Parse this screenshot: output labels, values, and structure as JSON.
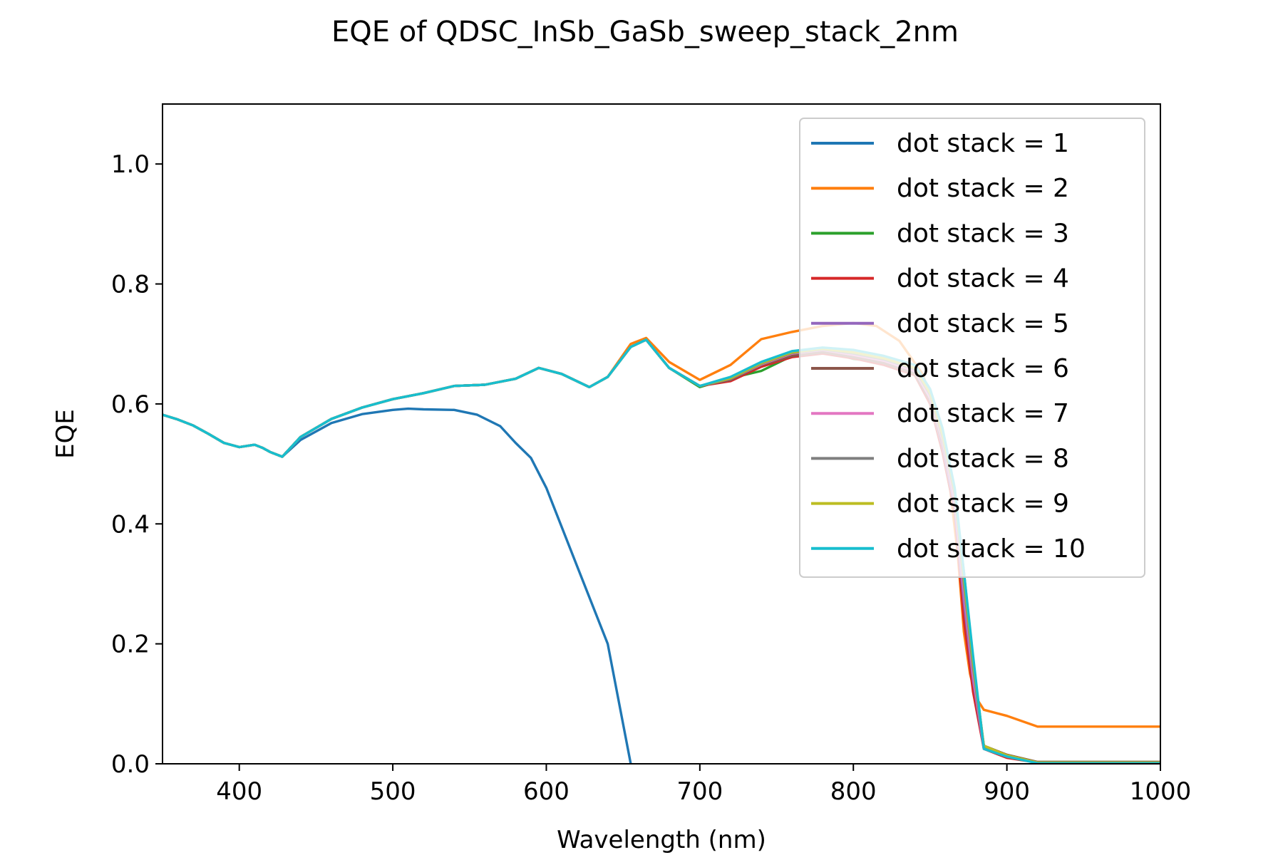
{
  "chart_data": {
    "type": "line",
    "title": "EQE of  QDSC_InSb_GaSb_sweep_stack_2nm",
    "xlabel": "Wavelength (nm)",
    "ylabel": "EQE",
    "xlim": [
      350,
      1000
    ],
    "ylim": [
      0,
      1.1
    ],
    "x_ticks": [
      400,
      500,
      600,
      700,
      800,
      900,
      1000
    ],
    "y_ticks": [
      0.0,
      0.2,
      0.4,
      0.6,
      0.8,
      1.0
    ],
    "x_tick_labels": [
      "400",
      "500",
      "600",
      "700",
      "800",
      "900",
      "1000"
    ],
    "y_tick_labels": [
      "0.0",
      "0.2",
      "0.4",
      "0.6",
      "0.8",
      "1.0"
    ],
    "grid": false,
    "legend_position": "top-right",
    "series": [
      {
        "name": "dot stack = 1",
        "color": "#1f77b4",
        "x": [
          350,
          360,
          370,
          380,
          390,
          400,
          410,
          415,
          420,
          428,
          440,
          460,
          480,
          500,
          510,
          520,
          540,
          555,
          570,
          580,
          590,
          600,
          620,
          640,
          655
        ],
        "y": [
          0.582,
          0.574,
          0.564,
          0.55,
          0.535,
          0.528,
          0.532,
          0.527,
          0.52,
          0.512,
          0.54,
          0.568,
          0.583,
          0.59,
          0.592,
          0.591,
          0.59,
          0.582,
          0.563,
          0.535,
          0.51,
          0.46,
          0.33,
          0.2,
          0.0
        ]
      },
      {
        "name": "dot stack = 2",
        "color": "#ff7f0e",
        "x": [
          350,
          360,
          370,
          380,
          390,
          400,
          410,
          415,
          420,
          428,
          440,
          460,
          480,
          500,
          520,
          540,
          560,
          580,
          595,
          610,
          628,
          640,
          655,
          665,
          680,
          700,
          720,
          740,
          760,
          780,
          800,
          815,
          830,
          845,
          855,
          862,
          868,
          872,
          876,
          880,
          885,
          900,
          920,
          1000
        ],
        "y": [
          0.582,
          0.574,
          0.564,
          0.55,
          0.535,
          0.528,
          0.532,
          0.527,
          0.52,
          0.512,
          0.545,
          0.575,
          0.594,
          0.608,
          0.618,
          0.63,
          0.632,
          0.642,
          0.66,
          0.65,
          0.628,
          0.645,
          0.7,
          0.71,
          0.67,
          0.64,
          0.665,
          0.708,
          0.72,
          0.73,
          0.735,
          0.73,
          0.705,
          0.65,
          0.58,
          0.48,
          0.35,
          0.22,
          0.15,
          0.11,
          0.09,
          0.08,
          0.062,
          0.062
        ]
      },
      {
        "name": "dot stack = 3",
        "color": "#2ca02c",
        "x": [
          350,
          360,
          370,
          380,
          390,
          400,
          410,
          415,
          420,
          428,
          440,
          460,
          480,
          500,
          520,
          540,
          560,
          580,
          595,
          610,
          628,
          640,
          655,
          665,
          680,
          700,
          720,
          740,
          760,
          780,
          800,
          820,
          840,
          850,
          858,
          866,
          872,
          878,
          885,
          900,
          920,
          1000
        ],
        "y": [
          0.582,
          0.574,
          0.564,
          0.55,
          0.535,
          0.528,
          0.532,
          0.527,
          0.52,
          0.512,
          0.545,
          0.575,
          0.594,
          0.608,
          0.618,
          0.63,
          0.632,
          0.642,
          0.66,
          0.65,
          0.628,
          0.645,
          0.695,
          0.707,
          0.66,
          0.628,
          0.643,
          0.655,
          0.68,
          0.69,
          0.675,
          0.67,
          0.655,
          0.6,
          0.52,
          0.42,
          0.3,
          0.15,
          0.03,
          0.015,
          0.003,
          0.003
        ]
      },
      {
        "name": "dot stack = 4",
        "color": "#d62728",
        "x": [
          350,
          360,
          370,
          380,
          390,
          400,
          410,
          415,
          420,
          428,
          440,
          460,
          480,
          500,
          520,
          540,
          560,
          580,
          595,
          610,
          628,
          640,
          655,
          665,
          680,
          700,
          720,
          740,
          760,
          780,
          800,
          820,
          840,
          850,
          858,
          866,
          872,
          878,
          885,
          900,
          920,
          1000
        ],
        "y": [
          0.582,
          0.574,
          0.564,
          0.55,
          0.535,
          0.528,
          0.532,
          0.527,
          0.52,
          0.512,
          0.545,
          0.575,
          0.594,
          0.608,
          0.618,
          0.63,
          0.632,
          0.642,
          0.66,
          0.65,
          0.628,
          0.645,
          0.695,
          0.707,
          0.66,
          0.63,
          0.638,
          0.662,
          0.678,
          0.684,
          0.676,
          0.665,
          0.648,
          0.6,
          0.52,
          0.42,
          0.24,
          0.12,
          0.025,
          0.01,
          0.002,
          0.002
        ]
      },
      {
        "name": "dot stack = 5",
        "color": "#9467bd",
        "x": [
          350,
          360,
          370,
          380,
          390,
          400,
          410,
          415,
          420,
          428,
          440,
          460,
          480,
          500,
          520,
          540,
          560,
          580,
          595,
          610,
          628,
          640,
          655,
          665,
          680,
          700,
          720,
          740,
          760,
          780,
          800,
          820,
          840,
          850,
          858,
          866,
          872,
          878,
          885,
          900,
          920,
          1000
        ],
        "y": [
          0.582,
          0.574,
          0.564,
          0.55,
          0.535,
          0.528,
          0.532,
          0.527,
          0.52,
          0.512,
          0.545,
          0.575,
          0.594,
          0.608,
          0.618,
          0.63,
          0.632,
          0.642,
          0.66,
          0.65,
          0.628,
          0.645,
          0.695,
          0.707,
          0.66,
          0.63,
          0.642,
          0.665,
          0.682,
          0.688,
          0.68,
          0.67,
          0.652,
          0.605,
          0.53,
          0.43,
          0.27,
          0.14,
          0.025,
          0.012,
          0.002,
          0.002
        ]
      },
      {
        "name": "dot stack = 6",
        "color": "#8c564b",
        "x": [
          350,
          360,
          370,
          380,
          390,
          400,
          410,
          415,
          420,
          428,
          440,
          460,
          480,
          500,
          520,
          540,
          560,
          580,
          595,
          610,
          628,
          640,
          655,
          665,
          680,
          700,
          720,
          740,
          760,
          780,
          800,
          820,
          840,
          850,
          858,
          866,
          872,
          878,
          885,
          900,
          920,
          1000
        ],
        "y": [
          0.582,
          0.574,
          0.564,
          0.55,
          0.535,
          0.528,
          0.532,
          0.527,
          0.52,
          0.512,
          0.545,
          0.575,
          0.594,
          0.608,
          0.618,
          0.63,
          0.632,
          0.642,
          0.66,
          0.65,
          0.628,
          0.645,
          0.695,
          0.707,
          0.66,
          0.63,
          0.64,
          0.665,
          0.68,
          0.686,
          0.678,
          0.668,
          0.65,
          0.605,
          0.535,
          0.44,
          0.32,
          0.17,
          0.03,
          0.015,
          0.003,
          0.003
        ]
      },
      {
        "name": "dot stack = 7",
        "color": "#e377c2",
        "x": [
          350,
          360,
          370,
          380,
          390,
          400,
          410,
          415,
          420,
          428,
          440,
          460,
          480,
          500,
          520,
          540,
          560,
          580,
          595,
          610,
          628,
          640,
          655,
          665,
          680,
          700,
          720,
          740,
          760,
          780,
          800,
          820,
          840,
          850,
          858,
          866,
          872,
          878,
          885,
          900,
          920,
          1000
        ],
        "y": [
          0.582,
          0.574,
          0.564,
          0.55,
          0.535,
          0.528,
          0.532,
          0.527,
          0.52,
          0.512,
          0.545,
          0.575,
          0.594,
          0.608,
          0.618,
          0.63,
          0.632,
          0.642,
          0.66,
          0.65,
          0.628,
          0.645,
          0.695,
          0.707,
          0.66,
          0.63,
          0.642,
          0.666,
          0.684,
          0.69,
          0.682,
          0.672,
          0.655,
          0.61,
          0.54,
          0.44,
          0.29,
          0.15,
          0.028,
          0.013,
          0.002,
          0.002
        ]
      },
      {
        "name": "dot stack = 8",
        "color": "#7f7f7f",
        "x": [
          350,
          360,
          370,
          380,
          390,
          400,
          410,
          415,
          420,
          428,
          440,
          460,
          480,
          500,
          520,
          540,
          560,
          580,
          595,
          610,
          628,
          640,
          655,
          665,
          680,
          700,
          720,
          740,
          760,
          780,
          800,
          820,
          840,
          850,
          858,
          866,
          872,
          878,
          885,
          900,
          920,
          1000
        ],
        "y": [
          0.582,
          0.574,
          0.564,
          0.55,
          0.535,
          0.528,
          0.532,
          0.527,
          0.52,
          0.512,
          0.545,
          0.575,
          0.594,
          0.608,
          0.618,
          0.63,
          0.632,
          0.642,
          0.66,
          0.65,
          0.628,
          0.645,
          0.695,
          0.707,
          0.66,
          0.63,
          0.642,
          0.667,
          0.685,
          0.691,
          0.684,
          0.674,
          0.658,
          0.615,
          0.545,
          0.45,
          0.3,
          0.16,
          0.028,
          0.013,
          0.002,
          0.002
        ]
      },
      {
        "name": "dot stack = 9",
        "color": "#bcbd22",
        "x": [
          350,
          360,
          370,
          380,
          390,
          400,
          410,
          415,
          420,
          428,
          440,
          460,
          480,
          500,
          520,
          540,
          560,
          580,
          595,
          610,
          628,
          640,
          655,
          665,
          680,
          700,
          720,
          740,
          760,
          780,
          800,
          820,
          840,
          850,
          858,
          866,
          872,
          878,
          885,
          900,
          920,
          1000
        ],
        "y": [
          0.582,
          0.574,
          0.564,
          0.55,
          0.535,
          0.528,
          0.532,
          0.527,
          0.52,
          0.512,
          0.545,
          0.575,
          0.594,
          0.608,
          0.618,
          0.63,
          0.632,
          0.642,
          0.66,
          0.65,
          0.628,
          0.645,
          0.695,
          0.707,
          0.66,
          0.63,
          0.643,
          0.668,
          0.686,
          0.692,
          0.686,
          0.676,
          0.66,
          0.618,
          0.55,
          0.455,
          0.31,
          0.17,
          0.03,
          0.014,
          0.002,
          0.002
        ]
      },
      {
        "name": "dot stack = 10",
        "color": "#17becf",
        "x": [
          350,
          360,
          370,
          380,
          390,
          400,
          410,
          415,
          420,
          428,
          440,
          460,
          480,
          500,
          520,
          540,
          560,
          580,
          595,
          610,
          628,
          640,
          655,
          665,
          680,
          700,
          720,
          740,
          760,
          780,
          800,
          820,
          840,
          850,
          858,
          866,
          872,
          878,
          885,
          900,
          920,
          1000
        ],
        "y": [
          0.582,
          0.574,
          0.564,
          0.55,
          0.535,
          0.528,
          0.532,
          0.527,
          0.52,
          0.512,
          0.545,
          0.575,
          0.594,
          0.608,
          0.618,
          0.63,
          0.632,
          0.642,
          0.66,
          0.65,
          0.628,
          0.645,
          0.695,
          0.707,
          0.66,
          0.63,
          0.645,
          0.67,
          0.688,
          0.694,
          0.69,
          0.68,
          0.665,
          0.625,
          0.56,
          0.46,
          0.32,
          0.18,
          0.025,
          0.012,
          0.001,
          0.001
        ]
      }
    ]
  }
}
